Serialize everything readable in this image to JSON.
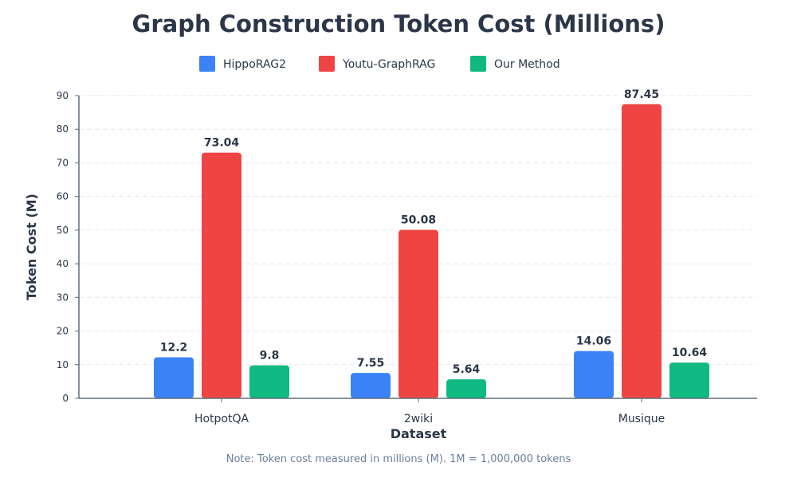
{
  "chart_data": {
    "type": "bar",
    "title": "Graph Construction Token Cost (Millions)",
    "xlabel": "Dataset",
    "ylabel": "Token Cost (M)",
    "categories": [
      "HotpotQA",
      "2wiki",
      "Musique"
    ],
    "series": [
      {
        "name": "HippoRAG2",
        "color": "#3b82f6",
        "values": [
          12.2,
          7.55,
          14.06
        ],
        "labels": [
          "12.2",
          "7.55",
          "14.06"
        ]
      },
      {
        "name": "Youtu-GraphRAG",
        "color": "#ef4444",
        "values": [
          73.04,
          50.08,
          87.45
        ],
        "labels": [
          "73.04",
          "50.08",
          "87.45"
        ]
      },
      {
        "name": "Our Method",
        "color": "#10b981",
        "values": [
          9.8,
          5.64,
          10.64
        ],
        "labels": [
          "9.8",
          "5.64",
          "10.64"
        ]
      }
    ],
    "ylim": [
      0,
      90
    ],
    "yticks": [
      0,
      10,
      20,
      30,
      40,
      50,
      60,
      70,
      80,
      90
    ],
    "grid": true,
    "legend_position": "top-center",
    "note": "Note: Token cost measured in millions (M). 1M = 1,000,000 tokens"
  }
}
